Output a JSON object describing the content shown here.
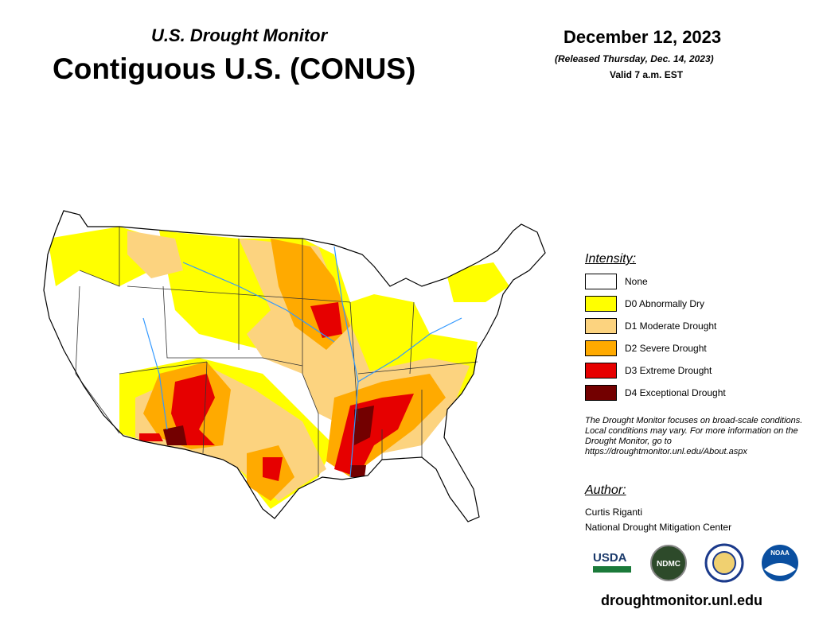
{
  "header": {
    "subtitle": "U.S. Drought Monitor",
    "title": "Contiguous U.S. (CONUS)",
    "date": "December 12, 2023",
    "released": "(Released Thursday, Dec. 14, 2023)",
    "valid": "Valid 7 a.m. EST"
  },
  "legend": {
    "title": "Intensity:",
    "items": [
      {
        "label": "None",
        "color": "#ffffff"
      },
      {
        "label": "D0 Abnormally Dry",
        "color": "#ffff00"
      },
      {
        "label": "D1 Moderate Drought",
        "color": "#fcd37f"
      },
      {
        "label": "D2 Severe Drought",
        "color": "#ffaa00"
      },
      {
        "label": "D3 Extreme Drought",
        "color": "#e60000"
      },
      {
        "label": "D4 Exceptional Drought",
        "color": "#730000"
      }
    ]
  },
  "note": "The Drought Monitor focuses on broad-scale conditions. Local conditions may vary. For more information on the Drought Monitor, go to https://droughtmonitor.unl.edu/About.aspx",
  "author": {
    "title": "Author:",
    "name": "Curtis Riganti",
    "org": "National Drought Mitigation Center"
  },
  "logos": [
    "USDA",
    "NDMC",
    "NOAA"
  ],
  "url": "droughtmonitor.unl.edu"
}
